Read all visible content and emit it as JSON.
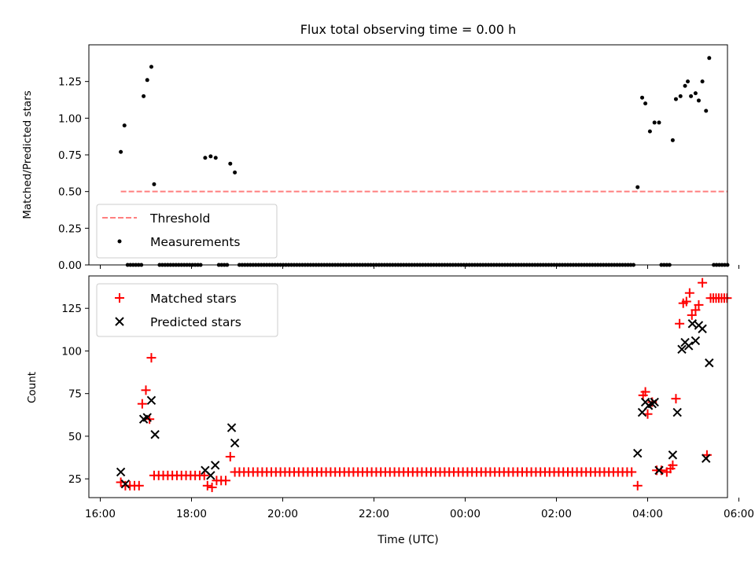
{
  "chart_data": [
    {
      "type": "scatter",
      "title": "Flux total observing time = 0.00 h",
      "xlabel": "",
      "ylabel": "Matched/Predicted stars",
      "xlim": [
        -0.25,
        13.75
      ],
      "ylim": [
        0,
        1.5
      ],
      "yticks": [
        0.0,
        0.25,
        0.5,
        0.75,
        1.0,
        1.25
      ],
      "ytick_labels": [
        "0.00",
        "0.25",
        "0.50",
        "0.75",
        "1.00",
        "1.25"
      ],
      "legend_position": "lower-left",
      "legend": [
        "Threshold",
        "Measurements"
      ],
      "threshold": {
        "name": "Threshold",
        "value": 0.5,
        "x_range": [
          0.45,
          13.75
        ],
        "color": "#ff7f7f"
      },
      "measurements": {
        "name": "Measurements",
        "color": "#000000",
        "points": [
          [
            0.45,
            0.77
          ],
          [
            0.53,
            0.95
          ],
          [
            0.95,
            1.15
          ],
          [
            1.03,
            1.26
          ],
          [
            1.12,
            1.35
          ],
          [
            1.18,
            0.55
          ],
          [
            2.3,
            0.73
          ],
          [
            2.42,
            0.74
          ],
          [
            2.53,
            0.73
          ],
          [
            2.85,
            0.69
          ],
          [
            2.95,
            0.63
          ],
          [
            11.78,
            0.53
          ],
          [
            11.88,
            1.14
          ],
          [
            11.95,
            1.1
          ],
          [
            12.05,
            0.91
          ],
          [
            12.15,
            0.97
          ],
          [
            12.25,
            0.97
          ],
          [
            12.55,
            0.85
          ],
          [
            12.62,
            1.13
          ],
          [
            12.72,
            1.15
          ],
          [
            12.82,
            1.22
          ],
          [
            12.88,
            1.25
          ],
          [
            12.95,
            1.15
          ],
          [
            13.05,
            1.17
          ],
          [
            13.12,
            1.12
          ],
          [
            13.2,
            1.25
          ],
          [
            13.28,
            1.05
          ],
          [
            13.35,
            1.41
          ]
        ],
        "zero_runs": [
          [
            0.6,
            0.95,
            0.06
          ],
          [
            1.3,
            2.25,
            0.06
          ],
          [
            2.6,
            2.8,
            0.06
          ],
          [
            3.05,
            11.7,
            0.06
          ],
          [
            12.3,
            12.5,
            0.06
          ],
          [
            13.45,
            13.75,
            0.06
          ]
        ]
      }
    },
    {
      "type": "scatter",
      "title": "",
      "xlabel": "Time (UTC)",
      "ylabel": "Count",
      "xlim": [
        -0.25,
        13.75
      ],
      "ylim": [
        14,
        144
      ],
      "yticks": [
        25,
        50,
        75,
        100,
        125
      ],
      "ytick_labels": [
        "25",
        "50",
        "75",
        "100",
        "125"
      ],
      "xticks": [
        0,
        2,
        4,
        6,
        8,
        10,
        12,
        14
      ],
      "xtick_labels": [
        "16:00",
        "18:00",
        "20:00",
        "22:00",
        "00:00",
        "02:00",
        "04:00",
        "06:00"
      ],
      "legend_position": "top-left",
      "legend": [
        "Matched stars",
        "Predicted stars"
      ],
      "series": [
        {
          "name": "Matched stars",
          "marker": "+",
          "color": "#ff0000",
          "points": [
            [
              0.45,
              23
            ],
            [
              0.55,
              21
            ],
            [
              0.65,
              21
            ],
            [
              0.75,
              21
            ],
            [
              0.85,
              21
            ],
            [
              0.92,
              69
            ],
            [
              1.0,
              77
            ],
            [
              1.08,
              60
            ],
            [
              1.12,
              96
            ],
            [
              2.35,
              21
            ],
            [
              2.45,
              20
            ],
            [
              2.55,
              24
            ],
            [
              2.65,
              24
            ],
            [
              2.75,
              24
            ],
            [
              2.85,
              38
            ],
            [
              11.78,
              21
            ],
            [
              11.9,
              74
            ],
            [
              11.95,
              76
            ],
            [
              12.0,
              63
            ],
            [
              12.1,
              70
            ],
            [
              12.2,
              30
            ],
            [
              12.3,
              30
            ],
            [
              12.42,
              29
            ],
            [
              12.5,
              31
            ],
            [
              12.55,
              33
            ],
            [
              12.62,
              72
            ],
            [
              12.7,
              116
            ],
            [
              12.78,
              128
            ],
            [
              12.85,
              129
            ],
            [
              12.92,
              134
            ],
            [
              12.97,
              121
            ],
            [
              13.05,
              124
            ],
            [
              13.12,
              127
            ],
            [
              13.2,
              140
            ],
            [
              13.3,
              39
            ]
          ],
          "flat_runs": [
            [
              1.18,
              2.3,
              27,
              0.1
            ],
            [
              2.95,
              11.7,
              29,
              0.1
            ],
            [
              13.38,
              13.75,
              131,
              0.06
            ]
          ]
        },
        {
          "name": "Predicted stars",
          "marker": "x",
          "color": "#000000",
          "points": [
            [
              0.45,
              29
            ],
            [
              0.55,
              22
            ],
            [
              0.95,
              60
            ],
            [
              1.03,
              61
            ],
            [
              1.12,
              71
            ],
            [
              1.2,
              51
            ],
            [
              2.3,
              30
            ],
            [
              2.42,
              27
            ],
            [
              2.52,
              33
            ],
            [
              2.88,
              55
            ],
            [
              2.95,
              46
            ],
            [
              11.78,
              40
            ],
            [
              11.88,
              64
            ],
            [
              11.95,
              70
            ],
            [
              12.02,
              68
            ],
            [
              12.1,
              69
            ],
            [
              12.15,
              70
            ],
            [
              12.25,
              30
            ],
            [
              12.55,
              39
            ],
            [
              12.65,
              64
            ],
            [
              12.75,
              101
            ],
            [
              12.82,
              105
            ],
            [
              12.9,
              103
            ],
            [
              12.98,
              116
            ],
            [
              13.05,
              106
            ],
            [
              13.12,
              115
            ],
            [
              13.2,
              113
            ],
            [
              13.28,
              37
            ],
            [
              13.35,
              93
            ]
          ]
        }
      ]
    }
  ]
}
